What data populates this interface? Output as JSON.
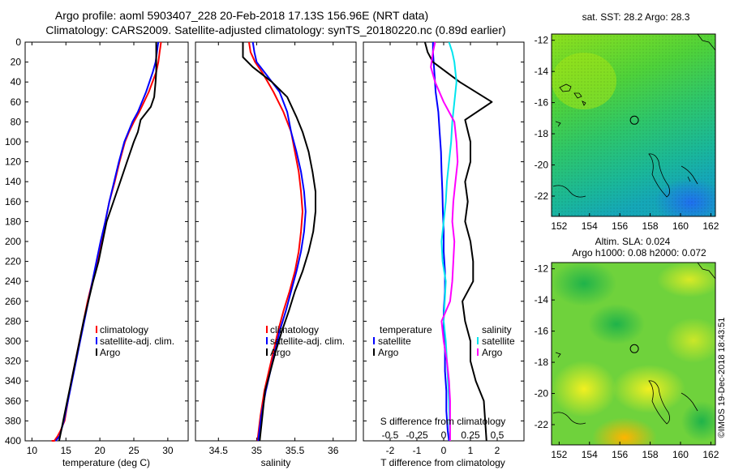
{
  "header": {
    "title_line1": "Argo profile: aoml 5903407_228 20-Feb-2018 17.13S 156.96E (NRT data)",
    "title_line2": "Climatology: CARS2009. Satellite-adjusted climatology: synTS_20180220.nc (0.89d earlier)"
  },
  "colors": {
    "climatology": "#ff0000",
    "satellite": "#0000ff",
    "argo": "#000000",
    "satellite_salinity": "#00e5ee",
    "argo_salinity": "#ff00ff"
  },
  "depth_axis": {
    "min": 0,
    "max": 400,
    "ticks": [
      0,
      20,
      40,
      60,
      80,
      100,
      120,
      140,
      160,
      180,
      200,
      220,
      240,
      260,
      280,
      300,
      320,
      340,
      360,
      380,
      400
    ],
    "tick_labels": [
      "0",
      "20",
      "40",
      "60",
      "80",
      "100",
      "120",
      "140",
      "160",
      "180",
      "200",
      "220",
      "240",
      "260",
      "280",
      "300",
      "320",
      "340",
      "360",
      "380",
      "400"
    ]
  },
  "panels": {
    "temperature": {
      "xlabel": "temperature (deg C)",
      "xlim": [
        9,
        33
      ],
      "ticks": [
        10,
        15,
        20,
        25,
        30
      ],
      "tick_labels": [
        "10",
        "15",
        "20",
        "25",
        "30"
      ],
      "legend": [
        "climatology",
        "satellite-adj. clim.",
        "Argo"
      ]
    },
    "salinity": {
      "xlabel": "salinity",
      "xlim": [
        34.2,
        36.3
      ],
      "ticks": [
        34.5,
        35,
        35.5,
        36
      ],
      "tick_labels": [
        "34.5",
        "35",
        "35.5",
        "36"
      ],
      "legend": [
        "climatology",
        "satellite-adj. clim.",
        "Argo"
      ]
    },
    "difference": {
      "xlabel": "T difference from climatology",
      "top_axis_label": "S difference from climatology",
      "xlim_T": [
        -3,
        3
      ],
      "ticks_T": [
        -2,
        -1,
        0,
        1,
        2
      ],
      "tick_labels_T": [
        "-2",
        "-1",
        "0",
        "1",
        "2"
      ],
      "xlim_S": [
        -0.75,
        0.75
      ],
      "ticks_S": [
        -0.5,
        -0.25,
        0,
        0.25,
        0.5
      ],
      "tick_labels_S": [
        "-0.5",
        "-0.25",
        "0",
        "0.25",
        "0.5"
      ],
      "legend_temperature_title": "temperature",
      "legend_salinity_title": "salinity",
      "legend_temperature": [
        "satellite",
        "Argo"
      ],
      "legend_salinity": [
        "satellite",
        "Argo"
      ]
    }
  },
  "maps": {
    "sst": {
      "title": "sat. SST: 28.2 Argo: 28.3",
      "xlim": [
        151.5,
        162.3
      ],
      "ylim": [
        -23.3,
        -11.6
      ],
      "xticks": [
        152,
        154,
        156,
        158,
        160,
        162
      ],
      "xtick_labels": [
        "152",
        "154",
        "156",
        "158",
        "160",
        "162"
      ],
      "yticks": [
        -12,
        -14,
        -16,
        -18,
        -20,
        -22
      ],
      "ytick_labels": [
        "-12",
        "-14",
        "-16",
        "-18",
        "-20",
        "-22"
      ],
      "marker": [
        156.96,
        -17.13
      ]
    },
    "sla": {
      "title_line1": "Altim. SLA: 0.024",
      "title_line2": "Argo h1000: 0.08 h2000: 0.072",
      "xlim": [
        151.5,
        162.3
      ],
      "ylim": [
        -23.3,
        -11.6
      ],
      "xticks": [
        152,
        154,
        156,
        158,
        160,
        162
      ],
      "xtick_labels": [
        "152",
        "154",
        "156",
        "158",
        "160",
        "162"
      ],
      "yticks": [
        -12,
        -14,
        -16,
        -18,
        -20,
        -22
      ],
      "ytick_labels": [
        "-12",
        "-14",
        "-16",
        "-18",
        "-20",
        "-22"
      ],
      "marker": [
        156.96,
        -17.13
      ]
    }
  },
  "credit": "©IMOS 19-Dec-2018 18:43:51",
  "chart_data": [
    {
      "type": "line",
      "title": "temperature profile",
      "xlabel": "temperature (deg C)",
      "ylabel": "depth",
      "xlim": [
        9,
        33
      ],
      "ylim": [
        400,
        0
      ],
      "series": [
        {
          "name": "climatology",
          "color": "#ff0000",
          "x": [
            29.0,
            28.9,
            28.8,
            28.6,
            28.3,
            27.2,
            25.8,
            25.0,
            24.3,
            23.7,
            22.9,
            22.2,
            21.4,
            20.8,
            20.2,
            19.6,
            18.9,
            18.2,
            17.6,
            17.0,
            16.4,
            15.8,
            15.3,
            14.8,
            14.2,
            13.8,
            13.3,
            12.9
          ],
          "depth": [
            0,
            5,
            10,
            20,
            30,
            50,
            70,
            80,
            90,
            100,
            120,
            140,
            160,
            180,
            200,
            220,
            240,
            260,
            280,
            300,
            320,
            340,
            360,
            380,
            390,
            395,
            400,
            404
          ]
        },
        {
          "name": "satellite-adj. clim.",
          "color": "#0000ff",
          "x": [
            28.6,
            28.5,
            28.4,
            28.2,
            27.8,
            26.8,
            25.6,
            24.8,
            24.2,
            23.6,
            22.8,
            22.1,
            21.4,
            20.8,
            20.1,
            19.5,
            18.9,
            18.3,
            17.7,
            17.1,
            16.5,
            15.9,
            15.3,
            14.7,
            14.1,
            13.5
          ],
          "depth": [
            0,
            5,
            10,
            20,
            30,
            50,
            70,
            80,
            90,
            100,
            120,
            140,
            160,
            180,
            200,
            220,
            240,
            260,
            280,
            300,
            320,
            340,
            360,
            380,
            395,
            404
          ]
        },
        {
          "name": "Argo",
          "color": "#000000",
          "x": [
            28.3,
            28.3,
            28.3,
            28.3,
            28.2,
            28.0,
            27.5,
            26.0,
            25.6,
            25.0,
            24.0,
            23.0,
            22.0,
            21.0,
            20.4,
            19.8,
            19.0,
            18.3,
            17.6,
            17.0,
            16.4,
            15.8,
            15.2,
            14.6,
            14.0
          ],
          "depth": [
            0,
            10,
            20,
            30,
            40,
            55,
            65,
            78,
            90,
            100,
            120,
            140,
            160,
            180,
            200,
            220,
            240,
            260,
            280,
            300,
            320,
            340,
            360,
            380,
            400
          ]
        }
      ]
    },
    {
      "type": "line",
      "title": "salinity profile",
      "xlabel": "salinity",
      "ylabel": "depth",
      "xlim": [
        34.2,
        36.3
      ],
      "ylim": [
        400,
        0
      ],
      "series": [
        {
          "name": "climatology",
          "color": "#ff0000",
          "x": [
            34.9,
            34.92,
            34.98,
            35.07,
            35.22,
            35.35,
            35.45,
            35.5,
            35.55,
            35.58,
            35.6,
            35.58,
            35.55,
            35.5,
            35.43,
            35.35,
            35.28,
            35.22,
            35.16,
            35.1,
            35.05,
            35.01
          ],
          "depth": [
            0,
            10,
            20,
            30,
            50,
            70,
            90,
            110,
            130,
            150,
            170,
            190,
            210,
            230,
            250,
            270,
            290,
            310,
            330,
            350,
            375,
            400
          ]
        },
        {
          "name": "satellite-adj. clim.",
          "color": "#0000ff",
          "x": [
            34.95,
            34.97,
            35.0,
            35.1,
            35.3,
            35.4,
            35.45,
            35.52,
            35.58,
            35.62,
            35.64,
            35.62,
            35.58,
            35.52,
            35.45,
            35.38,
            35.3,
            35.24,
            35.18,
            35.12,
            35.06,
            35.02
          ],
          "depth": [
            0,
            10,
            20,
            30,
            50,
            70,
            90,
            110,
            130,
            150,
            170,
            190,
            210,
            230,
            250,
            270,
            290,
            310,
            330,
            350,
            375,
            400
          ]
        },
        {
          "name": "Argo",
          "color": "#000000",
          "x": [
            34.82,
            34.82,
            34.95,
            35.2,
            35.4,
            35.52,
            35.6,
            35.68,
            35.73,
            35.77,
            35.77,
            35.74,
            35.68,
            35.6,
            35.5,
            35.42,
            35.33,
            35.25,
            35.18,
            35.11,
            35.04
          ],
          "depth": [
            0,
            15,
            25,
            40,
            55,
            75,
            90,
            110,
            130,
            150,
            170,
            190,
            210,
            230,
            250,
            270,
            290,
            310,
            330,
            350,
            400
          ]
        }
      ]
    },
    {
      "type": "line",
      "title": "difference from climatology",
      "xlabel": "T difference from climatology",
      "xlabel_top": "S difference from climatology",
      "ylim": [
        400,
        0
      ],
      "series": [
        {
          "name": "temperature satellite",
          "axis": "T",
          "color": "#0000ff",
          "x": [
            -0.4,
            -0.4,
            -0.35,
            -0.3,
            -0.2,
            -0.15,
            -0.1,
            -0.08,
            -0.05,
            -0.03,
            0.0,
            0.0,
            0.05,
            0.05,
            0.0,
            0.0,
            0.05,
            0.05,
            0.1,
            0.1,
            0.15,
            0.2
          ],
          "depth": [
            0,
            10,
            30,
            50,
            70,
            90,
            110,
            130,
            150,
            170,
            190,
            210,
            230,
            250,
            270,
            290,
            310,
            330,
            350,
            370,
            390,
            400
          ]
        },
        {
          "name": "temperature Argo",
          "axis": "T",
          "color": "#000000",
          "x": [
            -0.7,
            -0.6,
            -0.4,
            0.6,
            1.8,
            0.8,
            1.0,
            1.0,
            0.8,
            0.9,
            0.8,
            1.0,
            1.1,
            1.1,
            0.7,
            0.8,
            1.0,
            1.0,
            1.2,
            1.5,
            1.6
          ],
          "depth": [
            0,
            10,
            20,
            40,
            60,
            78,
            100,
            120,
            140,
            160,
            180,
            200,
            220,
            240,
            260,
            280,
            300,
            320,
            340,
            360,
            400
          ]
        },
        {
          "name": "salinity satellite",
          "axis": "S",
          "color": "#00e5ee",
          "x": [
            0.05,
            0.08,
            0.1,
            0.12,
            0.1,
            0.08,
            0.07,
            0.05,
            0.03,
            0.02,
            0.0,
            -0.02,
            -0.01,
            0.02,
            0.01,
            0.0,
            0.02,
            0.03,
            0.04,
            0.05,
            0.06
          ],
          "depth": [
            0,
            10,
            20,
            40,
            60,
            80,
            100,
            120,
            140,
            160,
            180,
            200,
            220,
            240,
            260,
            280,
            300,
            320,
            340,
            360,
            400
          ]
        },
        {
          "name": "salinity Argo",
          "axis": "S",
          "color": "#ff00ff",
          "x": [
            -0.08,
            -0.1,
            -0.12,
            -0.08,
            0.0,
            0.1,
            0.12,
            0.13,
            0.11,
            0.09,
            0.08,
            0.1,
            0.09,
            0.08,
            0.06,
            -0.02,
            0.0,
            0.03,
            0.05,
            0.06,
            0.06
          ],
          "depth": [
            0,
            10,
            25,
            40,
            60,
            80,
            100,
            120,
            140,
            160,
            180,
            200,
            220,
            240,
            260,
            280,
            300,
            320,
            340,
            360,
            400
          ]
        }
      ]
    }
  ]
}
